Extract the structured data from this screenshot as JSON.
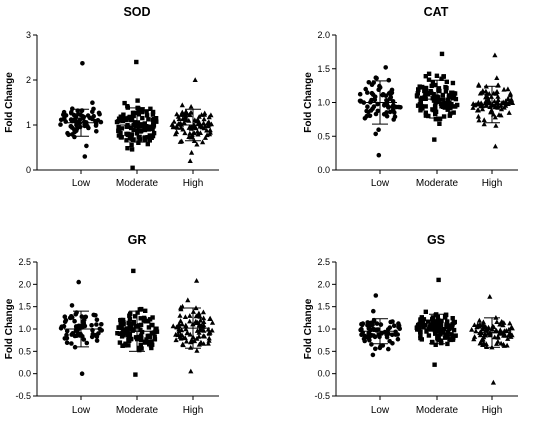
{
  "chart_data": [
    {
      "type": "scatter",
      "title": "SOD",
      "ylabel": "Fold Change",
      "categories": [
        "Low",
        "Moderate",
        "High"
      ],
      "ylim": [
        0,
        3
      ],
      "yticks": [
        "0",
        "1",
        "2",
        "3"
      ],
      "series": [
        {
          "marker": "circle",
          "count": 70,
          "center": 1.05,
          "spread": 0.55,
          "min": 0.3,
          "max": 2.37,
          "mean": 1.05,
          "sd": 0.3
        },
        {
          "marker": "square",
          "count": 110,
          "center": 1.0,
          "spread": 0.65,
          "min": 0.05,
          "max": 2.4,
          "mean": 1.0,
          "sd": 0.38
        },
        {
          "marker": "triangle",
          "count": 90,
          "center": 1.0,
          "spread": 0.6,
          "min": 0.2,
          "max": 2.0,
          "mean": 1.0,
          "sd": 0.35
        }
      ]
    },
    {
      "type": "scatter",
      "title": "CAT",
      "ylabel": "Fold Change",
      "categories": [
        "Low",
        "Moderate",
        "High"
      ],
      "ylim": [
        0,
        2
      ],
      "yticks": [
        "0.0",
        "0.5",
        "1.0",
        "1.5",
        "2.0"
      ],
      "series": [
        {
          "marker": "circle",
          "count": 70,
          "center": 1.0,
          "spread": 0.5,
          "min": 0.22,
          "max": 1.52,
          "mean": 1.0,
          "sd": 0.32
        },
        {
          "marker": "square",
          "count": 110,
          "center": 1.05,
          "spread": 0.45,
          "min": 0.45,
          "max": 1.72,
          "mean": 1.05,
          "sd": 0.28
        },
        {
          "marker": "triangle",
          "count": 90,
          "center": 0.97,
          "spread": 0.45,
          "min": 0.35,
          "max": 1.7,
          "mean": 0.97,
          "sd": 0.27
        }
      ]
    },
    {
      "type": "scatter",
      "title": "GR",
      "ylabel": "Fold Change",
      "categories": [
        "Low",
        "Moderate",
        "High"
      ],
      "ylim": [
        -0.5,
        2.5
      ],
      "yticks": [
        "-0.5",
        "0.0",
        "0.5",
        "1.0",
        "1.5",
        "2.0",
        "2.5"
      ],
      "series": [
        {
          "marker": "circle",
          "count": 70,
          "center": 1.0,
          "spread": 0.55,
          "min": 0.0,
          "max": 2.05,
          "mean": 1.0,
          "sd": 0.4
        },
        {
          "marker": "square",
          "count": 110,
          "center": 0.95,
          "spread": 0.6,
          "min": -0.02,
          "max": 2.3,
          "mean": 0.95,
          "sd": 0.45
        },
        {
          "marker": "triangle",
          "count": 90,
          "center": 1.02,
          "spread": 0.6,
          "min": 0.05,
          "max": 2.08,
          "mean": 1.02,
          "sd": 0.45
        }
      ]
    },
    {
      "type": "scatter",
      "title": "GS",
      "ylabel": "Fold Change",
      "categories": [
        "Low",
        "Moderate",
        "High"
      ],
      "ylim": [
        -0.5,
        2.5
      ],
      "yticks": [
        "-0.5",
        "0.0",
        "0.5",
        "1.0",
        "1.5",
        "2.0",
        "2.5"
      ],
      "series": [
        {
          "marker": "circle",
          "count": 70,
          "center": 0.95,
          "spread": 0.45,
          "min": 0.42,
          "max": 1.75,
          "mean": 0.95,
          "sd": 0.28
        },
        {
          "marker": "square",
          "count": 110,
          "center": 1.0,
          "spread": 0.5,
          "min": 0.2,
          "max": 2.1,
          "mean": 1.0,
          "sd": 0.33
        },
        {
          "marker": "triangle",
          "count": 90,
          "center": 0.92,
          "spread": 0.5,
          "min": -0.2,
          "max": 1.72,
          "mean": 0.92,
          "sd": 0.33
        }
      ]
    }
  ]
}
